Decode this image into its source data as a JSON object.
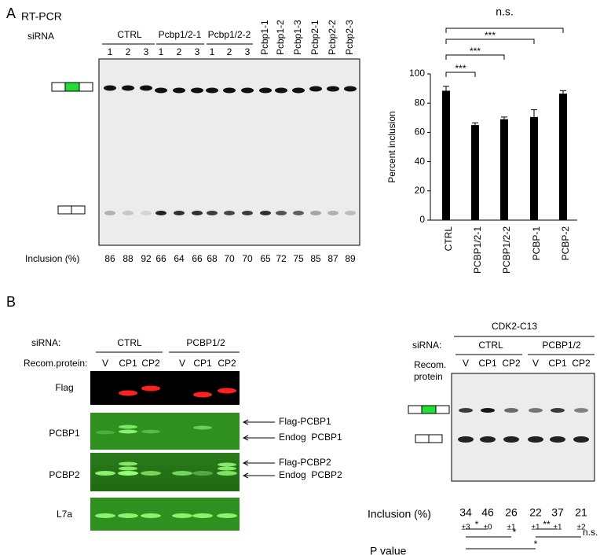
{
  "panel_a": {
    "label": "A",
    "method": "RT-PCR",
    "sirna_label": "siRNA",
    "groups": [
      "CTRL",
      "Pcbp1/2-1",
      "Pcbp1/2-2"
    ],
    "lanes": [
      "1",
      "2",
      "3",
      "1",
      "2",
      "3",
      "1",
      "2",
      "3",
      "Pcbp1-1",
      "Pcbp1-2",
      "Pcbp1-3",
      "Pcbp2-1",
      "Pcbp2-2",
      "Pcbp2-3"
    ],
    "inclusion_label": "Inclusion (%)",
    "inclusion": [
      86,
      88,
      92,
      66,
      64,
      66,
      68,
      70,
      70,
      65,
      72,
      75,
      85,
      87,
      89
    ],
    "chart": {
      "type": "bar",
      "ylabel": "Percent inclusion",
      "categories": [
        "CTRL",
        "PCBP1/2-1",
        "PCBP1/2-2",
        "PCBP-1",
        "PCBP-2"
      ],
      "values": [
        88.5,
        65,
        69,
        70.5,
        86.5
      ],
      "errors": [
        3,
        1.5,
        1.5,
        5,
        2
      ],
      "color": "#000000",
      "ylim": [
        0,
        100
      ],
      "yticks": [
        0,
        20,
        40,
        60,
        80,
        100
      ],
      "significance": [
        "***",
        "***",
        "***",
        "n.s."
      ]
    }
  },
  "panel_b": {
    "label": "B",
    "left": {
      "sirna_label": "siRNA:",
      "groups": [
        "CTRL",
        "PCBP1/2"
      ],
      "protein_label": "Recom.protein:",
      "lanes": [
        "V",
        "CP1",
        "CP2",
        "V",
        "CP1",
        "CP2"
      ],
      "blots": [
        "Flag",
        "PCBP1",
        "PCBP2",
        "L7a"
      ],
      "arrows": [
        "Flag-PCBP1",
        "Endog  PCBP1",
        "Flag-PCBP2",
        "Endog  PCBP2"
      ]
    },
    "right": {
      "construct": "CDK2-C13",
      "sirna_label": "siRNA:",
      "groups": [
        "CTRL",
        "PCBP1/2"
      ],
      "protein_label": [
        "Recom.",
        "protein"
      ],
      "lanes": [
        "V",
        "CP1",
        "CP2",
        "V",
        "CP1",
        "CP2"
      ],
      "inclusion_label": "Inclusion (%)",
      "inclusion": [
        34,
        46,
        26,
        22,
        37,
        21
      ],
      "errors": [
        "±3",
        "±0",
        "±1",
        "±1",
        "±1",
        "±2"
      ],
      "p_label": "P value",
      "p_marks": [
        "*",
        "*",
        "*",
        "**",
        "n.s."
      ]
    }
  }
}
